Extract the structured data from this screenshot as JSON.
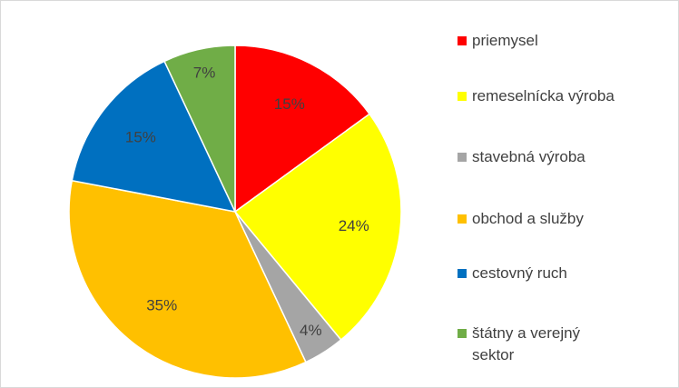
{
  "chart_data": {
    "type": "pie",
    "categories": [
      "priemysel",
      "remeselnícka výroba",
      "stavebná výroba",
      "obchod  a služby",
      "cestovný ruch",
      "štátny a verejný sektor"
    ],
    "values": [
      15,
      24,
      4,
      35,
      15,
      7
    ],
    "value_labels": [
      "15%",
      "24%",
      "4%",
      "35%",
      "15%",
      "7%"
    ],
    "colors": [
      "#ff0000",
      "#ffff00",
      "#a5a5a5",
      "#ffc000",
      "#0070c0",
      "#70ad47"
    ],
    "legend": "right"
  }
}
